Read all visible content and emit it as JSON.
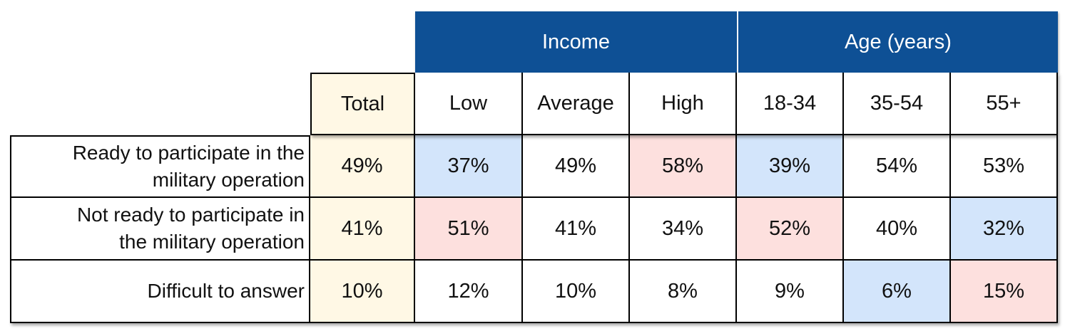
{
  "colors": {
    "header_bg": "#0e5095",
    "header_text": "#ffffff",
    "total_bg": "#fff8e5",
    "blue_highlight": "#d3e5fb",
    "red_highlight": "#fde0de",
    "plain": "#ffffff"
  },
  "chart_data": {
    "type": "table",
    "groups": [
      {
        "label": "Income",
        "columns": [
          "Low",
          "Average",
          "High"
        ]
      },
      {
        "label": "Age (years)",
        "columns": [
          "18-34",
          "35-54",
          "55+"
        ]
      }
    ],
    "column_headers": [
      "Total",
      "Low",
      "Average",
      "High",
      "18-34",
      "35-54",
      "55+"
    ],
    "rows": [
      {
        "label": "Ready to participate in the military operation",
        "label_lines": [
          "Ready to participate in the",
          "military operation"
        ],
        "values": [
          "49%",
          "37%",
          "49%",
          "58%",
          "39%",
          "54%",
          "53%"
        ],
        "highlights": [
          "total",
          "blue",
          "none",
          "red",
          "blue",
          "none",
          "none"
        ]
      },
      {
        "label": "Not ready to participate in the military operation",
        "label_lines": [
          "Not ready to participate in",
          "the military operation"
        ],
        "values": [
          "41%",
          "51%",
          "41%",
          "34%",
          "52%",
          "40%",
          "32%"
        ],
        "highlights": [
          "total",
          "red",
          "none",
          "none",
          "red",
          "none",
          "blue"
        ]
      },
      {
        "label": "Difficult to answer",
        "label_lines": [
          "Difficult to answer"
        ],
        "values": [
          "10%",
          "12%",
          "10%",
          "8%",
          "9%",
          "6%",
          "15%"
        ],
        "highlights": [
          "total",
          "none",
          "none",
          "none",
          "none",
          "blue",
          "red"
        ]
      }
    ]
  }
}
